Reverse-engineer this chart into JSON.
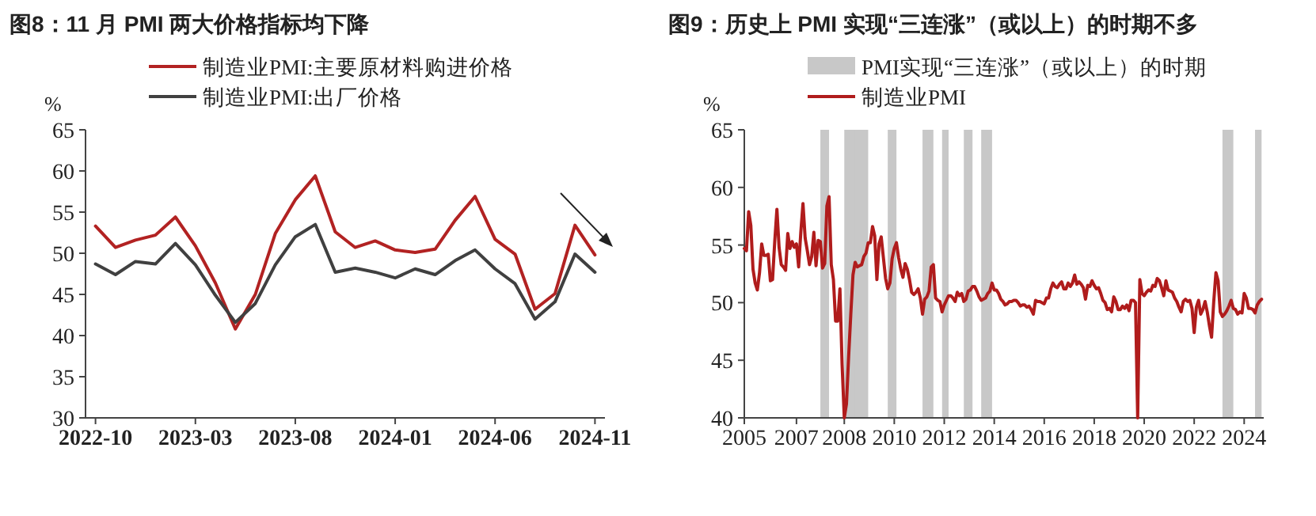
{
  "chart_data": [
    {
      "type": "line",
      "title": "图8：11 月 PMI 两大价格指标均下降",
      "ylabel": "%",
      "legend": "top",
      "ylim": [
        30,
        65
      ],
      "yticks": [
        30,
        35,
        40,
        45,
        50,
        55,
        60,
        65
      ],
      "categories": [
        "2022-10",
        null,
        null,
        null,
        null,
        "2023-03",
        null,
        null,
        null,
        null,
        "2023-08",
        null,
        null,
        null,
        null,
        "2024-01",
        null,
        null,
        null,
        null,
        "2024-06",
        null,
        null,
        null,
        null,
        "2024-11"
      ],
      "series": [
        {
          "name": "制造业PMI:主要原材料购进价格",
          "color": "#b22222",
          "values": [
            53.3,
            50.7,
            51.6,
            52.2,
            54.4,
            50.9,
            46.4,
            40.8,
            45.0,
            52.4,
            56.5,
            59.4,
            52.6,
            50.7,
            51.5,
            50.4,
            50.1,
            50.5,
            54.0,
            56.9,
            51.7,
            49.9,
            43.2,
            45.1,
            53.4,
            49.8
          ]
        },
        {
          "name": "制造业PMI:出厂价格",
          "color": "#404040",
          "values": [
            48.7,
            47.4,
            49.0,
            48.7,
            51.2,
            48.6,
            44.9,
            41.6,
            43.9,
            48.6,
            52.0,
            53.5,
            47.7,
            48.2,
            47.7,
            47.0,
            48.1,
            47.4,
            49.1,
            50.4,
            48.1,
            46.3,
            42.0,
            44.1,
            49.9,
            47.7
          ]
        }
      ]
    },
    {
      "type": "line",
      "title": "图9：历史上 PMI 实现“三连涨”（或以上）的时期不多",
      "ylabel": "%",
      "legend": "top",
      "ylim": [
        40,
        65
      ],
      "yticks": [
        40,
        45,
        50,
        55,
        60,
        65
      ],
      "xlim": [
        "2005-01",
        "2024-12"
      ],
      "xticks": [
        {
          "value": "2005-01",
          "label": "2005"
        },
        {
          "value": "2007-01",
          "label": "2007"
        },
        {
          "value": "2008-11",
          "label": "2008"
        },
        {
          "value": "2010-10",
          "label": "2010"
        },
        {
          "value": "2012-09",
          "label": "2012"
        },
        {
          "value": "2014-08",
          "label": "2014"
        },
        {
          "value": "2016-07",
          "label": "2016"
        },
        {
          "value": "2018-06",
          "label": "2018"
        },
        {
          "value": "2020-05",
          "label": "2020"
        },
        {
          "value": "2022-04",
          "label": "2022"
        },
        {
          "value": "2024-03",
          "label": "2024"
        }
      ],
      "bands": [
        {
          "axis": "x",
          "from": "2007-12",
          "to": "2008-04",
          "label": "PMI实现“三连涨”（或以上）的时期",
          "color": "#c8c8c8"
        },
        {
          "axis": "x",
          "from": "2008-11",
          "to": "2009-04",
          "color": "#c8c8c8"
        },
        {
          "axis": "x",
          "from": "2009-04",
          "to": "2009-10",
          "color": "#c8c8c8"
        },
        {
          "axis": "x",
          "from": "2010-07",
          "to": "2010-11",
          "color": "#c8c8c8"
        },
        {
          "axis": "x",
          "from": "2011-11",
          "to": "2012-04",
          "color": "#c8c8c8"
        },
        {
          "axis": "x",
          "from": "2012-08",
          "to": "2012-11",
          "color": "#c8c8c8"
        },
        {
          "axis": "x",
          "from": "2013-06",
          "to": "2013-10",
          "color": "#c8c8c8"
        },
        {
          "axis": "x",
          "from": "2014-02",
          "to": "2014-07",
          "color": "#c8c8c8"
        },
        {
          "axis": "x",
          "from": "2023-05",
          "to": "2023-10",
          "color": "#c8c8c8"
        },
        {
          "axis": "x",
          "from": "2024-08",
          "to": "2024-11",
          "color": "#c8c8c8"
        }
      ],
      "x": [
        "2005-01",
        "2005-02",
        "2005-03",
        "2005-04",
        "2005-05",
        "2005-06",
        "2005-07",
        "2005-08",
        "2005-09",
        "2005-10",
        "2005-11",
        "2005-12",
        "2006-01",
        "2006-02",
        "2006-03",
        "2006-04",
        "2006-05",
        "2006-06",
        "2006-07",
        "2006-08",
        "2006-09",
        "2006-10",
        "2006-11",
        "2006-12",
        "2007-01",
        "2007-02",
        "2007-03",
        "2007-04",
        "2007-05",
        "2007-06",
        "2007-07",
        "2007-08",
        "2007-09",
        "2007-10",
        "2007-11",
        "2007-12",
        "2008-01",
        "2008-02",
        "2008-03",
        "2008-04",
        "2008-05",
        "2008-06",
        "2008-07",
        "2008-08",
        "2008-09",
        "2008-10",
        "2008-11",
        "2008-12",
        "2009-01",
        "2009-02",
        "2009-03",
        "2009-04",
        "2009-05",
        "2009-06",
        "2009-07",
        "2009-08",
        "2009-09",
        "2009-10",
        "2009-11",
        "2009-12",
        "2010-01",
        "2010-02",
        "2010-03",
        "2010-04",
        "2010-05",
        "2010-06",
        "2010-07",
        "2010-08",
        "2010-09",
        "2010-10",
        "2010-11",
        "2010-12",
        "2011-01",
        "2011-02",
        "2011-03",
        "2011-04",
        "2011-05",
        "2011-06",
        "2011-07",
        "2011-08",
        "2011-09",
        "2011-10",
        "2011-11",
        "2011-12",
        "2012-01",
        "2012-02",
        "2012-03",
        "2012-04",
        "2012-05",
        "2012-06",
        "2012-07",
        "2012-08",
        "2012-09",
        "2012-10",
        "2012-11",
        "2012-12",
        "2013-01",
        "2013-02",
        "2013-03",
        "2013-04",
        "2013-05",
        "2013-06",
        "2013-07",
        "2013-08",
        "2013-09",
        "2013-10",
        "2013-11",
        "2013-12",
        "2014-01",
        "2014-02",
        "2014-03",
        "2014-04",
        "2014-05",
        "2014-06",
        "2014-07",
        "2014-08",
        "2014-09",
        "2014-10",
        "2014-11",
        "2014-12",
        "2015-01",
        "2015-02",
        "2015-03",
        "2015-04",
        "2015-05",
        "2015-06",
        "2015-07",
        "2015-08",
        "2015-09",
        "2015-10",
        "2015-11",
        "2015-12",
        "2016-01",
        "2016-02",
        "2016-03",
        "2016-04",
        "2016-05",
        "2016-06",
        "2016-07",
        "2016-08",
        "2016-09",
        "2016-10",
        "2016-11",
        "2016-12",
        "2017-01",
        "2017-02",
        "2017-03",
        "2017-04",
        "2017-05",
        "2017-06",
        "2017-07",
        "2017-08",
        "2017-09",
        "2017-10",
        "2017-11",
        "2017-12",
        "2018-01",
        "2018-02",
        "2018-03",
        "2018-04",
        "2018-05",
        "2018-06",
        "2018-07",
        "2018-08",
        "2018-09",
        "2018-10",
        "2018-11",
        "2018-12",
        "2019-01",
        "2019-02",
        "2019-03",
        "2019-04",
        "2019-05",
        "2019-06",
        "2019-07",
        "2019-08",
        "2019-09",
        "2019-10",
        "2019-11",
        "2019-12",
        "2020-01",
        "2020-02",
        "2020-03",
        "2020-04",
        "2020-05",
        "2020-06",
        "2020-07",
        "2020-08",
        "2020-09",
        "2020-10",
        "2020-11",
        "2020-12",
        "2021-01",
        "2021-02",
        "2021-03",
        "2021-04",
        "2021-05",
        "2021-06",
        "2021-07",
        "2021-08",
        "2021-09",
        "2021-10",
        "2021-11",
        "2021-12",
        "2022-01",
        "2022-02",
        "2022-03",
        "2022-04",
        "2022-05",
        "2022-06",
        "2022-07",
        "2022-08",
        "2022-09",
        "2022-10",
        "2022-11",
        "2022-12",
        "2023-01",
        "2023-02",
        "2023-03",
        "2023-04",
        "2023-05",
        "2023-06",
        "2023-07",
        "2023-08",
        "2023-09",
        "2023-10",
        "2023-11",
        "2023-12",
        "2024-01",
        "2024-02",
        "2024-03",
        "2024-04",
        "2024-05",
        "2024-06",
        "2024-07",
        "2024-08",
        "2024-09",
        "2024-10",
        "2024-11"
      ],
      "series": [
        {
          "name": "制造业PMI",
          "color": "#b01c1c",
          "values": [
            54.7,
            54.5,
            57.9,
            56.7,
            52.9,
            51.7,
            51.1,
            52.6,
            55.1,
            54.1,
            54.1,
            54.2,
            51.9,
            52.0,
            55.3,
            58.1,
            54.8,
            53.3,
            53.1,
            52.8,
            56.0,
            54.7,
            55.3,
            54.8,
            55.1,
            53.1,
            56.1,
            58.6,
            55.6,
            54.5,
            53.3,
            54.0,
            56.1,
            53.2,
            55.4,
            55.3,
            53.0,
            53.4,
            58.4,
            59.2,
            53.3,
            52.0,
            48.4,
            48.4,
            51.2,
            44.6,
            40,
            41.2,
            45.3,
            49.0,
            52.4,
            53.5,
            53.1,
            53.2,
            53.3,
            54.0,
            54.3,
            55.2,
            55.2,
            56.6,
            55.8,
            52.0,
            55.1,
            55.7,
            53.9,
            52.1,
            51.2,
            51.7,
            53.8,
            54.7,
            55.2,
            53.9,
            52.9,
            52.2,
            53.4,
            52.9,
            52.0,
            50.9,
            50.7,
            50.9,
            51.2,
            50.4,
            49.0,
            50.3,
            50.5,
            51.0,
            53.1,
            53.3,
            50.4,
            50.2,
            50.1,
            49.2,
            49.8,
            50.2,
            50.6,
            50.6,
            50.4,
            50.1,
            50.9,
            50.6,
            50.8,
            50.1,
            50.3,
            51.0,
            51.1,
            51.4,
            51.4,
            51.0,
            50.5,
            50.2,
            50.3,
            50.4,
            50.8,
            51.0,
            51.7,
            51.1,
            51.1,
            50.8,
            50.3,
            50.1,
            49.8,
            49.9,
            50.1,
            50.1,
            50.2,
            50.2,
            50.0,
            49.7,
            49.8,
            49.8,
            49.6,
            49.7,
            49.4,
            49.0,
            50.2,
            50.1,
            50.1,
            50.0,
            49.9,
            50.4,
            50.4,
            51.2,
            51.7,
            51.4,
            51.3,
            51.6,
            51.8,
            51.2,
            51.2,
            51.7,
            51.4,
            51.7,
            52.4,
            51.6,
            51.8,
            51.6,
            51.3,
            50.3,
            51.5,
            51.4,
            51.9,
            51.5,
            51.2,
            51.3,
            50.8,
            50.2,
            50.0,
            49.4,
            49.5,
            49.2,
            50.5,
            50.1,
            49.4,
            49.4,
            49.7,
            49.5,
            49.8,
            49.3,
            50.2,
            50.2,
            50.0,
            40,
            52.0,
            50.8,
            50.6,
            50.9,
            51.1,
            51.0,
            51.5,
            51.4,
            52.1,
            51.9,
            51.3,
            50.6,
            51.9,
            51.1,
            51.0,
            50.9,
            50.4,
            50.1,
            49.6,
            49.2,
            50.1,
            50.3,
            50.1,
            50.2,
            49.5,
            47.4,
            49.6,
            50.2,
            49.0,
            49.4,
            50.1,
            49.2,
            48.0,
            47.0,
            50.1,
            52.6,
            51.9,
            49.2,
            48.8,
            49.0,
            49.3,
            49.7,
            50.2,
            49.5,
            49.4,
            49.0,
            49.2,
            49.1,
            50.8,
            50.4,
            49.5,
            49.5,
            49.4,
            49.1,
            49.8,
            50.1,
            50.3
          ]
        }
      ]
    }
  ]
}
